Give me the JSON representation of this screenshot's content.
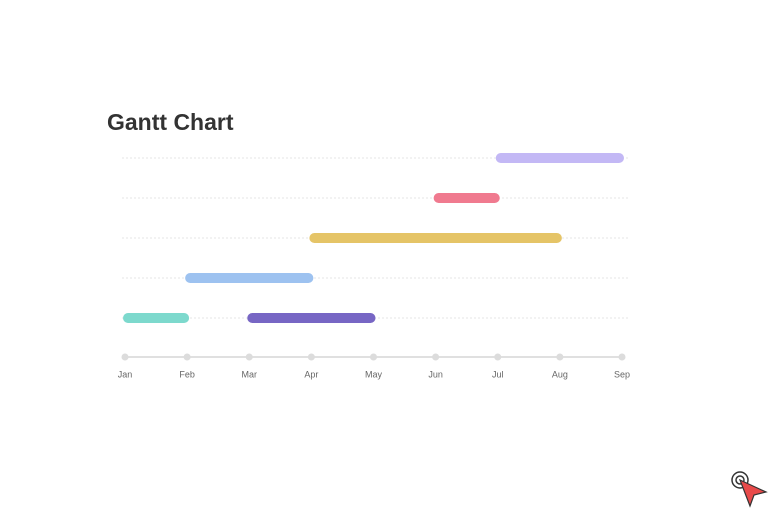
{
  "chart_data": {
    "type": "gantt",
    "title": "Gantt Chart",
    "xlim": [
      0,
      8
    ],
    "xticks": [
      {
        "value": 0,
        "label": "Jan"
      },
      {
        "value": 1,
        "label": "Feb"
      },
      {
        "value": 2,
        "label": "Mar"
      },
      {
        "value": 3,
        "label": "Apr"
      },
      {
        "value": 4,
        "label": "May"
      },
      {
        "value": 5,
        "label": "Jun"
      },
      {
        "value": 6,
        "label": "Jul"
      },
      {
        "value": 7,
        "label": "Aug"
      },
      {
        "value": 8,
        "label": "Sep"
      }
    ],
    "grid": true,
    "rows": [
      [
        {
          "start": 6,
          "end": 8,
          "color": "#c3b8f5"
        }
      ],
      [
        {
          "start": 5,
          "end": 6,
          "color": "#f07a8f"
        }
      ],
      [
        {
          "start": 3,
          "end": 7,
          "color": "#e5c467"
        }
      ],
      [
        {
          "start": 1,
          "end": 3,
          "color": "#9dc2f0"
        }
      ],
      [
        {
          "start": 0,
          "end": 1,
          "color": "#7dd9cd"
        },
        {
          "start": 2,
          "end": 4,
          "color": "#7766c4"
        }
      ]
    ]
  }
}
